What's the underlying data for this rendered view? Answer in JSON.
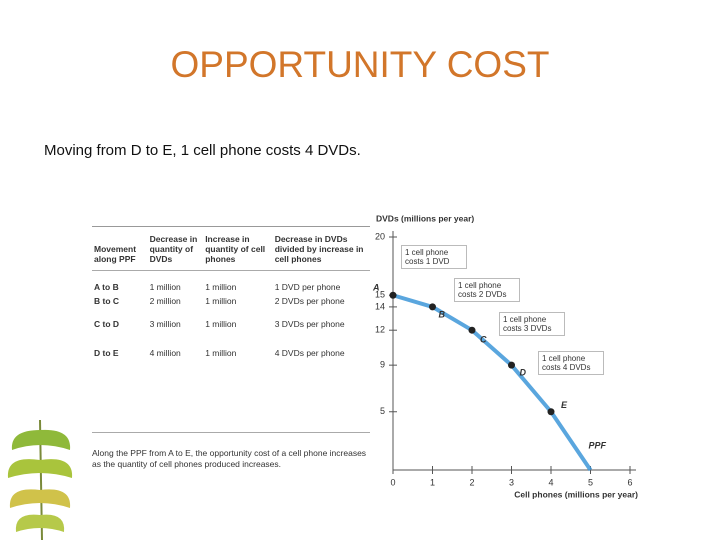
{
  "title": "OPPORTUNITY COST",
  "subtitle": "Moving from D to E, 1 cell phone costs 4 DVDs.",
  "table": {
    "header": [
      "Movement along PPF",
      "Decrease in quantity of DVDs",
      "Increase in quantity of cell phones",
      "Decrease in DVDs divided by increase in cell phones"
    ],
    "rows": [
      [
        "A to B",
        "1 million",
        "1 million",
        "1 DVD per phone"
      ],
      [
        "B to C",
        "2 million",
        "1 million",
        "2 DVDs per phone"
      ],
      [
        "C to D",
        "3 million",
        "1 million",
        "3 DVDs per phone"
      ],
      [
        "D to E",
        "4 million",
        "1 million",
        "4 DVDs per phone"
      ]
    ],
    "caption": "Along the PPF from A to E, the opportunity cost of a cell phone increases as the quantity of cell phones produced increases."
  },
  "chart_data": {
    "type": "line",
    "x_label": "Cell phones (millions per year)",
    "y_label": "DVDs (millions per year)",
    "x": [
      0,
      1,
      2,
      3,
      4,
      5
    ],
    "series": [
      {
        "name": "PPF",
        "color": "#3d97d8",
        "values": [
          15,
          14,
          12,
          9,
          5,
          0
        ]
      }
    ],
    "point_labels": [
      "A",
      "B",
      "C",
      "D",
      "E",
      null
    ],
    "annotations": [
      "1 cell phone costs 1 DVD",
      "1 cell phone costs 2 DVDs",
      "1 cell phone costs 3 DVDs",
      "1 cell phone costs 4 DVDs"
    ],
    "xlim": [
      0,
      6
    ],
    "ylim": [
      0,
      20
    ],
    "xticks": [
      0,
      1,
      2,
      3,
      4,
      5,
      6
    ],
    "yticks": [
      5,
      9,
      12,
      14,
      15,
      20
    ],
    "grid": false
  }
}
